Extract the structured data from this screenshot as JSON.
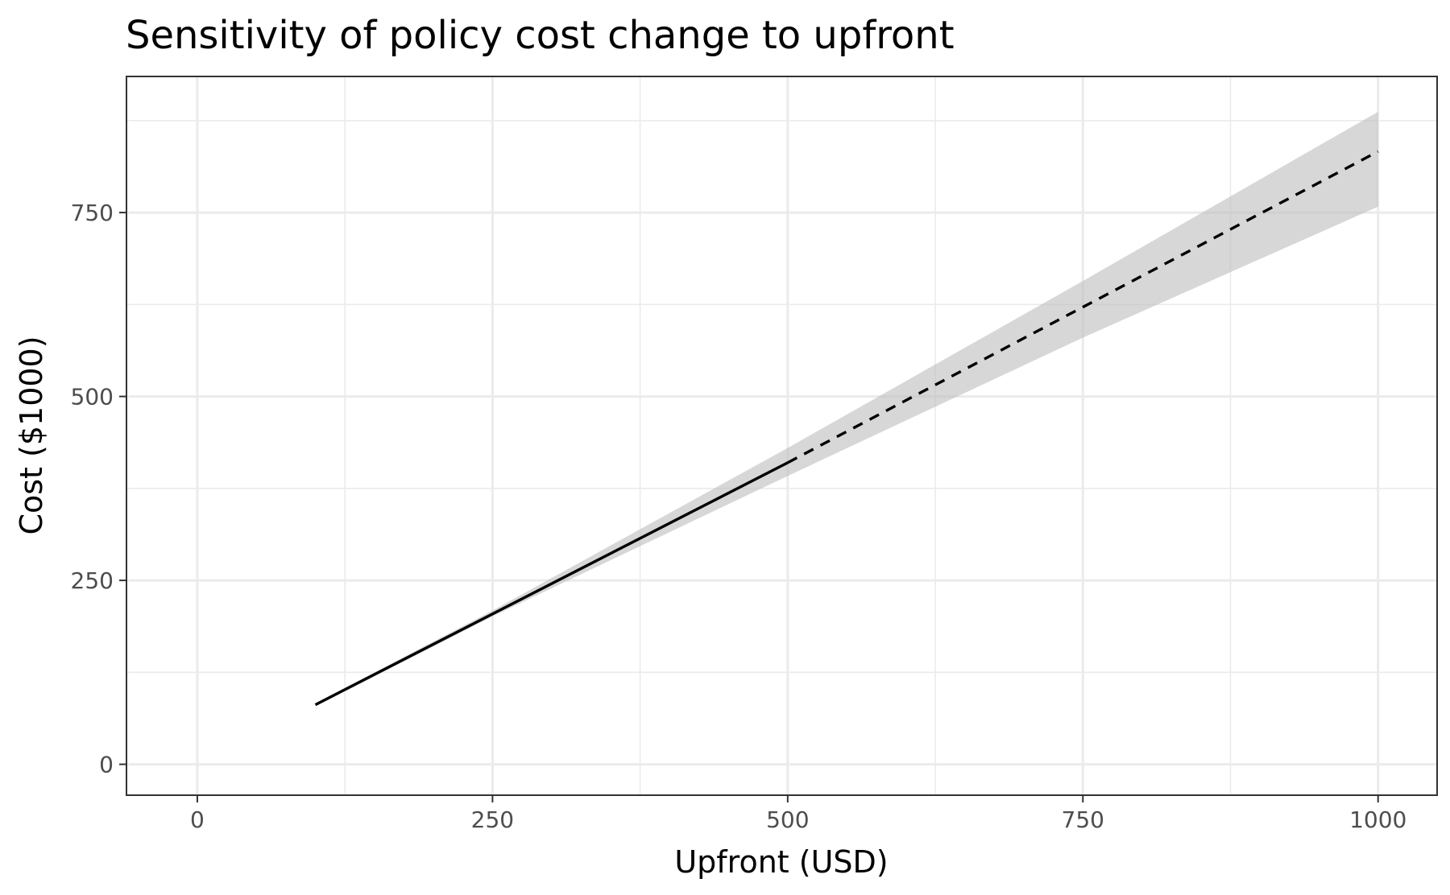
{
  "chart_data": {
    "type": "line",
    "title": "Sensitivity of policy cost change to upfront",
    "xlabel": "Upfront (USD)",
    "ylabel": "Cost ($1000)",
    "xlim": [
      -60,
      1050
    ],
    "ylim": [
      -42,
      935
    ],
    "x_ticks": [
      0,
      250,
      500,
      750,
      1000
    ],
    "x_tick_labels": [
      "0",
      "250",
      "500",
      "750",
      "1000"
    ],
    "x_minor_ticks": [
      125,
      375,
      625,
      875
    ],
    "y_ticks": [
      0,
      250,
      500,
      750
    ],
    "y_tick_labels": [
      "0",
      "250",
      "500",
      "750"
    ],
    "y_minor_ticks": [
      125,
      375,
      625,
      875
    ],
    "grid": true,
    "legend": "none",
    "colors": {
      "line": "#000000",
      "ribbon": "#bdbdbd",
      "grid": "#ebebeb",
      "border": "#333333",
      "tick_label": "#4d4d4d"
    },
    "series": [
      {
        "style": "solid",
        "x": [
          100,
          500
        ],
        "y": [
          81,
          410
        ]
      },
      {
        "style": "dashed",
        "x": [
          500,
          1000
        ],
        "y": [
          410,
          833
        ]
      }
    ],
    "ribbon": {
      "x": [
        100,
        250,
        500,
        750,
        1000
      ],
      "upper": [
        83,
        209,
        430,
        657,
        887
      ],
      "lower": [
        79,
        201,
        392,
        580,
        758
      ]
    }
  }
}
